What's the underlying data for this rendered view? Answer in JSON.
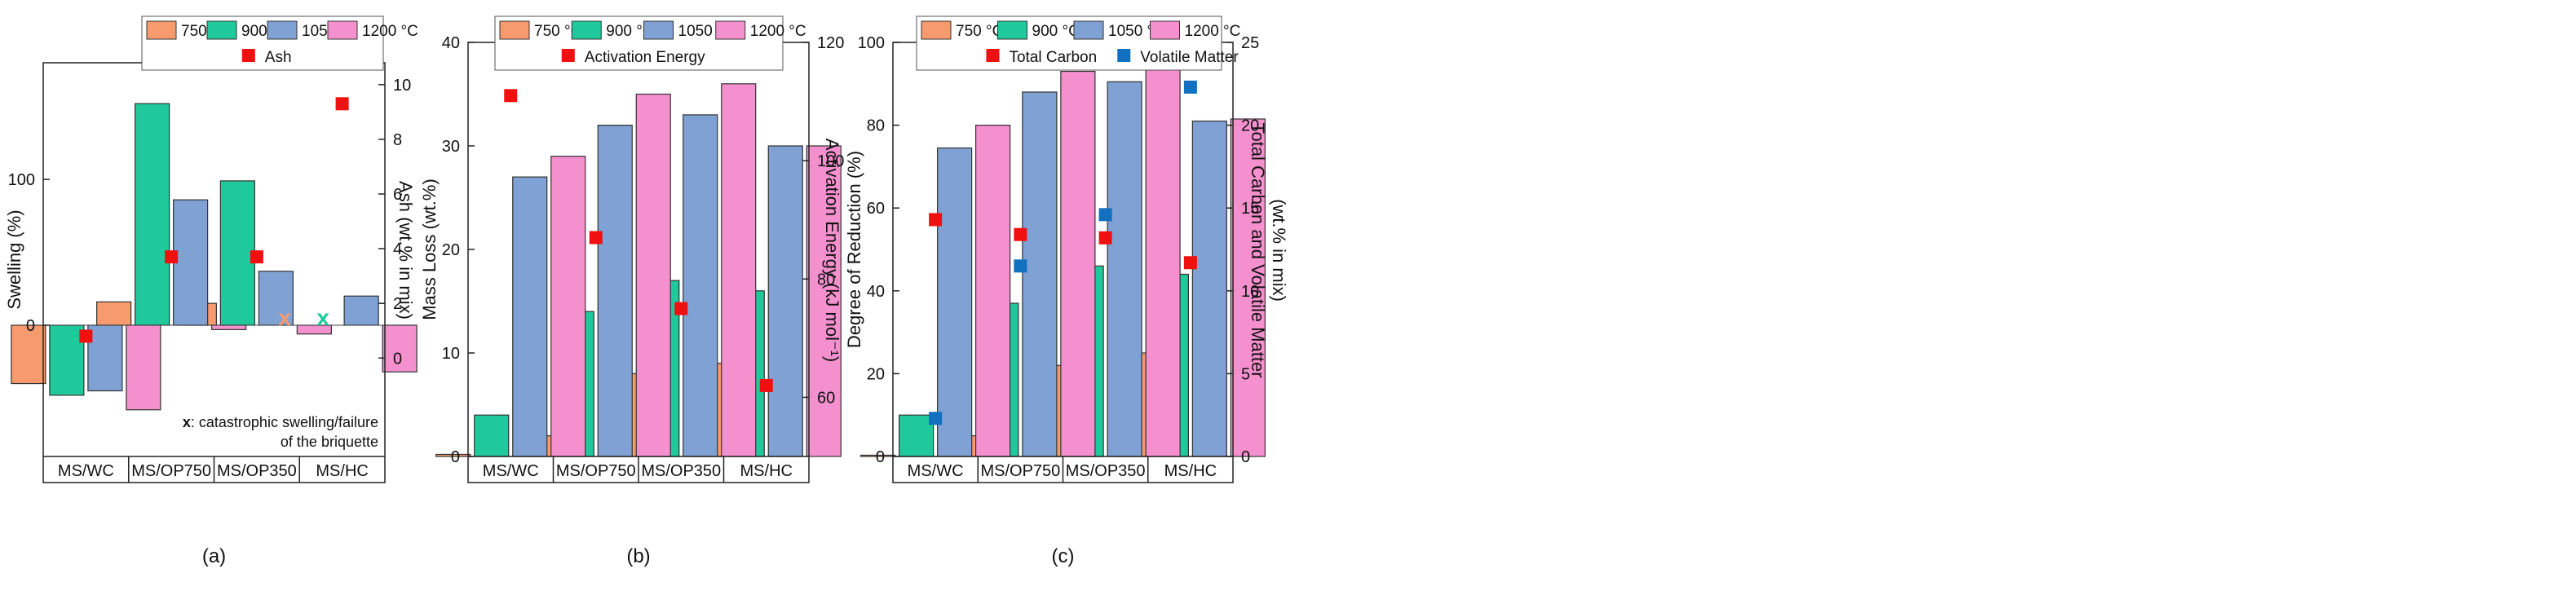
{
  "colors": {
    "c750": "#F79A6E",
    "c900": "#1FC99B",
    "c1050": "#7FA1D3",
    "c1200": "#F590CF",
    "red": "#F01010",
    "blue": "#1170C0",
    "axis": "#222222"
  },
  "chart_data": [
    {
      "type": "bar",
      "panel_label": "(a)",
      "categories": [
        "MS/WC",
        "MS/OP750",
        "MS/OP350",
        "MS/HC"
      ],
      "series": [
        {
          "name": "750 °C",
          "values": [
            -40,
            16,
            15,
            null
          ]
        },
        {
          "name": "900 °C",
          "values": [
            -48,
            152,
            99,
            null
          ]
        },
        {
          "name": "1050 °C",
          "values": [
            -45,
            86,
            37,
            20
          ]
        },
        {
          "name": "1200 °C",
          "values": [
            -58,
            -3,
            -6,
            -32
          ]
        }
      ],
      "secondary_series": [
        {
          "name": "Ash",
          "marker": "square",
          "color": "red",
          "values": [
            0.8,
            3.7,
            3.7,
            9.3
          ]
        }
      ],
      "catastrophic_markers": [
        {
          "category": "MS/HC",
          "series": "750 °C",
          "symbol": "x"
        },
        {
          "category": "MS/HC",
          "series": "900 °C",
          "symbol": "x"
        }
      ],
      "annotation_symbol": "x",
      "annotation_text_line1": ": catastrophic swelling/failure",
      "annotation_text_line2": "of the briquette",
      "ylabel": "Swelling (%)",
      "y2label": "Ash (wt.% in mix)",
      "ylim": [
        -90,
        180
      ],
      "y2lim": [
        -3.6,
        10.8
      ],
      "yticks": [
        0,
        100
      ],
      "y2ticks": [
        0,
        2,
        4,
        6,
        8,
        10
      ],
      "legend": {
        "line1": [
          "750 °C",
          "900 °C",
          "1050 °C",
          "1200 °C"
        ],
        "line2": [
          "Ash"
        ]
      }
    },
    {
      "type": "bar",
      "panel_label": "(b)",
      "categories": [
        "MS/WC",
        "MS/OP750",
        "MS/OP350",
        "MS/HC"
      ],
      "series": [
        {
          "name": "750 °C",
          "values": [
            0.2,
            2,
            8,
            9
          ]
        },
        {
          "name": "900 °C",
          "values": [
            4,
            14,
            17,
            16
          ]
        },
        {
          "name": "1050 °C",
          "values": [
            27,
            32,
            33,
            30
          ]
        },
        {
          "name": "1200 °C",
          "values": [
            29,
            35,
            36,
            30
          ]
        }
      ],
      "secondary_series": [
        {
          "name": "Activation Energy",
          "marker": "square",
          "color": "red",
          "values": [
            111,
            87,
            75,
            62
          ]
        }
      ],
      "ylabel": "Mass Loss (wt.%)",
      "y2label": "Activation Energy (kJ mol⁻¹)",
      "ylim": [
        0,
        40
      ],
      "y2lim": [
        50,
        120
      ],
      "yticks": [
        0,
        10,
        20,
        30,
        40
      ],
      "y2ticks": [
        60,
        80,
        100,
        120
      ],
      "legend": {
        "line1": [
          "750 °C",
          "900 °C",
          "1050 °C",
          "1200 °C"
        ],
        "line2": [
          "Activation Energy"
        ]
      }
    },
    {
      "type": "bar",
      "panel_label": "(c)",
      "categories": [
        "MS/WC",
        "MS/OP750",
        "MS/OP350",
        "MS/HC"
      ],
      "series": [
        {
          "name": "750 °C",
          "values": [
            0.3,
            5,
            22,
            25
          ]
        },
        {
          "name": "900 °C",
          "values": [
            10,
            37,
            46,
            44
          ]
        },
        {
          "name": "1050 °C",
          "values": [
            74.5,
            88,
            90.5,
            81
          ]
        },
        {
          "name": "1200 °C",
          "values": [
            80,
            93,
            97,
            81.5
          ]
        }
      ],
      "secondary_series": [
        {
          "name": "Total Carbon",
          "marker": "square",
          "color": "red",
          "values": [
            14.3,
            13.4,
            13.2,
            11.7
          ]
        },
        {
          "name": "Volatile Matter",
          "marker": "square",
          "color": "blue",
          "values": [
            2.3,
            11.5,
            14.6,
            22.3
          ]
        }
      ],
      "ylabel": "Degree of Reduction (%)",
      "y2label_line1": "Total Carbon and Volatile Matter",
      "y2label_line2": "(wt.% in mix)",
      "ylim": [
        0,
        100
      ],
      "y2lim": [
        0,
        25
      ],
      "yticks": [
        0,
        20,
        40,
        60,
        80,
        100
      ],
      "y2ticks": [
        0,
        5,
        10,
        15,
        20,
        25
      ],
      "legend": {
        "line1": [
          "750 °C",
          "900 °C",
          "1050 °C",
          "1200 °C"
        ],
        "line2": [
          "Total Carbon",
          "Volatile Matter"
        ]
      }
    }
  ]
}
